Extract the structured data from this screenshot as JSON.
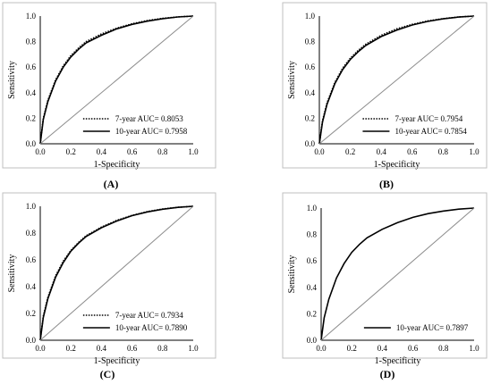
{
  "chart_data": [
    {
      "type": "line",
      "panel_label": "(A)",
      "xlabel": "1-Specificity",
      "ylabel": "Sensitivity",
      "xlim": [
        0,
        1
      ],
      "ylim": [
        0,
        1
      ],
      "x_ticks": [
        "0.0",
        "0.2",
        "0.4",
        "0.6",
        "0.8",
        "1.0"
      ],
      "y_ticks": [
        "0.0",
        "0.2",
        "0.4",
        "0.6",
        "0.8",
        "1.0"
      ],
      "legend_placement": "bottom-right",
      "series": [
        {
          "name": "7-year AUC= 0.8053",
          "style": "dotted",
          "points": [
            [
              0,
              0
            ],
            [
              0.02,
              0.2
            ],
            [
              0.05,
              0.34
            ],
            [
              0.1,
              0.5
            ],
            [
              0.15,
              0.61
            ],
            [
              0.2,
              0.69
            ],
            [
              0.25,
              0.75
            ],
            [
              0.3,
              0.8
            ],
            [
              0.4,
              0.86
            ],
            [
              0.5,
              0.905
            ],
            [
              0.6,
              0.94
            ],
            [
              0.7,
              0.965
            ],
            [
              0.8,
              0.982
            ],
            [
              0.9,
              0.994
            ],
            [
              1,
              1
            ]
          ]
        },
        {
          "name": "10-year AUC= 0.7958",
          "style": "solid",
          "points": [
            [
              0,
              0
            ],
            [
              0.02,
              0.19
            ],
            [
              0.05,
              0.33
            ],
            [
              0.1,
              0.49
            ],
            [
              0.15,
              0.6
            ],
            [
              0.2,
              0.68
            ],
            [
              0.25,
              0.74
            ],
            [
              0.3,
              0.79
            ],
            [
              0.4,
              0.85
            ],
            [
              0.5,
              0.9
            ],
            [
              0.6,
              0.935
            ],
            [
              0.7,
              0.96
            ],
            [
              0.8,
              0.98
            ],
            [
              0.9,
              0.993
            ],
            [
              1,
              1
            ]
          ]
        },
        {
          "name": "",
          "style": "reference",
          "points": [
            [
              0,
              0
            ],
            [
              1,
              1
            ]
          ]
        }
      ]
    },
    {
      "type": "line",
      "panel_label": "(B)",
      "xlabel": "1-Specificity",
      "ylabel": "Sensitivity",
      "xlim": [
        0,
        1
      ],
      "ylim": [
        0,
        1
      ],
      "x_ticks": [
        "0.0",
        "0.2",
        "0.4",
        "0.6",
        "0.8",
        "1.0"
      ],
      "y_ticks": [
        "0.0",
        "0.2",
        "0.4",
        "0.6",
        "0.8",
        "1.0"
      ],
      "legend_placement": "bottom-right",
      "series": [
        {
          "name": "7-year AUC= 0.7954",
          "style": "dotted",
          "points": [
            [
              0,
              0
            ],
            [
              0.02,
              0.18
            ],
            [
              0.05,
              0.32
            ],
            [
              0.1,
              0.48
            ],
            [
              0.15,
              0.59
            ],
            [
              0.2,
              0.67
            ],
            [
              0.25,
              0.73
            ],
            [
              0.3,
              0.78
            ],
            [
              0.4,
              0.85
            ],
            [
              0.5,
              0.9
            ],
            [
              0.6,
              0.935
            ],
            [
              0.7,
              0.962
            ],
            [
              0.8,
              0.98
            ],
            [
              0.9,
              0.993
            ],
            [
              1,
              1
            ]
          ]
        },
        {
          "name": "10-year AUC= 0.7854",
          "style": "solid",
          "points": [
            [
              0,
              0
            ],
            [
              0.02,
              0.17
            ],
            [
              0.05,
              0.31
            ],
            [
              0.1,
              0.47
            ],
            [
              0.15,
              0.58
            ],
            [
              0.2,
              0.66
            ],
            [
              0.25,
              0.72
            ],
            [
              0.3,
              0.77
            ],
            [
              0.4,
              0.84
            ],
            [
              0.5,
              0.89
            ],
            [
              0.6,
              0.93
            ],
            [
              0.7,
              0.958
            ],
            [
              0.8,
              0.978
            ],
            [
              0.9,
              0.992
            ],
            [
              1,
              1
            ]
          ]
        },
        {
          "name": "",
          "style": "reference",
          "points": [
            [
              0,
              0
            ],
            [
              1,
              1
            ]
          ]
        }
      ]
    },
    {
      "type": "line",
      "panel_label": "(C)",
      "xlabel": "1-Specificity",
      "ylabel": "Sensitivity",
      "xlim": [
        0,
        1
      ],
      "ylim": [
        0,
        1
      ],
      "x_ticks": [
        "0.0",
        "0.2",
        "0.4",
        "0.6",
        "0.8",
        "1.0"
      ],
      "y_ticks": [
        "0.0",
        "0.2",
        "0.4",
        "0.6",
        "0.8",
        "1.0"
      ],
      "legend_placement": "bottom-right",
      "series": [
        {
          "name": "7-year AUC= 0.7934",
          "style": "dotted",
          "points": [
            [
              0,
              0
            ],
            [
              0.02,
              0.18
            ],
            [
              0.05,
              0.32
            ],
            [
              0.1,
              0.48
            ],
            [
              0.15,
              0.59
            ],
            [
              0.2,
              0.67
            ],
            [
              0.25,
              0.73
            ],
            [
              0.3,
              0.78
            ],
            [
              0.4,
              0.845
            ],
            [
              0.5,
              0.895
            ],
            [
              0.6,
              0.932
            ],
            [
              0.7,
              0.96
            ],
            [
              0.8,
              0.98
            ],
            [
              0.9,
              0.993
            ],
            [
              1,
              1
            ]
          ]
        },
        {
          "name": "10-year AUC= 0.7890",
          "style": "solid",
          "points": [
            [
              0,
              0
            ],
            [
              0.02,
              0.17
            ],
            [
              0.05,
              0.31
            ],
            [
              0.1,
              0.47
            ],
            [
              0.15,
              0.58
            ],
            [
              0.2,
              0.665
            ],
            [
              0.25,
              0.725
            ],
            [
              0.3,
              0.775
            ],
            [
              0.4,
              0.84
            ],
            [
              0.5,
              0.89
            ],
            [
              0.6,
              0.93
            ],
            [
              0.7,
              0.958
            ],
            [
              0.8,
              0.978
            ],
            [
              0.9,
              0.992
            ],
            [
              1,
              1
            ]
          ]
        },
        {
          "name": "",
          "style": "reference",
          "points": [
            [
              0,
              0
            ],
            [
              1,
              1
            ]
          ]
        }
      ]
    },
    {
      "type": "line",
      "panel_label": "(D)",
      "xlabel": "1-Specificity",
      "ylabel": "Sensitivity",
      "xlim": [
        0,
        1
      ],
      "ylim": [
        0,
        1
      ],
      "x_ticks": [
        "0.0",
        "0.2",
        "0.4",
        "0.6",
        "0.8",
        "1.0"
      ],
      "y_ticks": [
        "0.0",
        "0.2",
        "0.4",
        "0.6",
        "0.8",
        "1.0"
      ],
      "legend_placement": "bottom-right",
      "series": [
        {
          "name": "10-year AUC= 0.7897",
          "style": "solid",
          "points": [
            [
              0,
              0
            ],
            [
              0.02,
              0.17
            ],
            [
              0.05,
              0.31
            ],
            [
              0.1,
              0.47
            ],
            [
              0.15,
              0.58
            ],
            [
              0.2,
              0.665
            ],
            [
              0.25,
              0.725
            ],
            [
              0.3,
              0.775
            ],
            [
              0.4,
              0.84
            ],
            [
              0.5,
              0.89
            ],
            [
              0.6,
              0.93
            ],
            [
              0.7,
              0.958
            ],
            [
              0.8,
              0.978
            ],
            [
              0.9,
              0.992
            ],
            [
              1,
              1
            ]
          ]
        },
        {
          "name": "",
          "style": "reference",
          "points": [
            [
              0,
              0
            ],
            [
              1,
              1
            ]
          ]
        }
      ]
    }
  ]
}
